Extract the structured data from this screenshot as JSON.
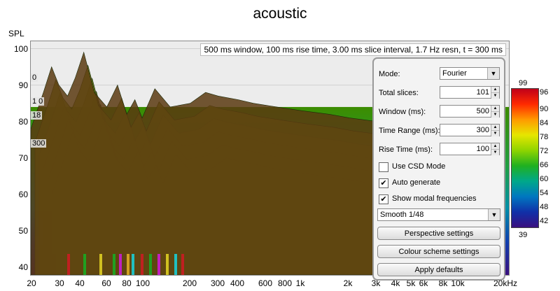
{
  "chart_data": {
    "type": "area",
    "title": "acoustic",
    "ylabel": "SPL",
    "xlabel": "",
    "xscale": "log",
    "xlim": [
      20,
      20000
    ],
    "ylim": [
      38,
      102
    ],
    "grid": true,
    "y_ticks": [
      "100",
      "90",
      "80",
      "70",
      "60",
      "50",
      "40"
    ],
    "x_ticks": [
      "20",
      "30",
      "40",
      "60",
      "80",
      "100",
      "200",
      "300",
      "400",
      "600",
      "800",
      "1k",
      "2k",
      "3k",
      "4k",
      "5k",
      "6k",
      "8k",
      "10k",
      "20kHz"
    ],
    "slice_labels": [
      "0",
      "1 0",
      "18",
      "300"
    ],
    "series": [
      {
        "values_freq": [
          20,
          24,
          27,
          30,
          34,
          38,
          43,
          50,
          60,
          70,
          80,
          90,
          100,
          120,
          150,
          200,
          250,
          300,
          400,
          500,
          700,
          1000,
          1500,
          2000,
          3000,
          4000
        ],
        "values_spl": [
          78,
          88,
          95,
          90,
          87,
          92,
          99,
          88,
          84,
          90,
          82,
          86,
          81,
          89,
          84,
          85,
          88,
          87,
          86,
          85,
          84,
          83,
          82,
          81,
          80,
          78
        ]
      }
    ],
    "colorbar": {
      "max_label": "99",
      "min_label": "39",
      "ticks": [
        "96",
        "90",
        "84",
        "78",
        "72",
        "66",
        "60",
        "54",
        "48",
        "42"
      ],
      "colors": [
        "#c0001a",
        "#ff2a00",
        "#ff9a00",
        "#e6e600",
        "#8fd400",
        "#20b020",
        "#00a88a",
        "#0077c0",
        "#1030a8",
        "#3a1080"
      ]
    }
  },
  "info_banner": "500 ms window, 100 ms rise time, 3.00 ms slice interval, 1.7 Hz resn, t = 300 ms",
  "panel": {
    "mode_label": "Mode:",
    "mode_value": "Fourier",
    "total_slices_label": "Total slices:",
    "total_slices_value": "101",
    "window_label": "Window (ms):",
    "window_value": "500",
    "time_range_label": "Time Range (ms):",
    "time_range_value": "300",
    "rise_time_label": "Rise Time (ms):",
    "rise_time_value": "100",
    "use_csd_label": "Use CSD Mode",
    "use_csd_checked": false,
    "auto_generate_label": "Auto generate",
    "auto_generate_checked": true,
    "show_modal_label": "Show modal frequencies",
    "show_modal_checked": true,
    "smoothing_value": "Smooth 1/48",
    "perspective_button": "Perspective settings",
    "colour_button": "Colour scheme settings",
    "defaults_button": "Apply defaults"
  }
}
